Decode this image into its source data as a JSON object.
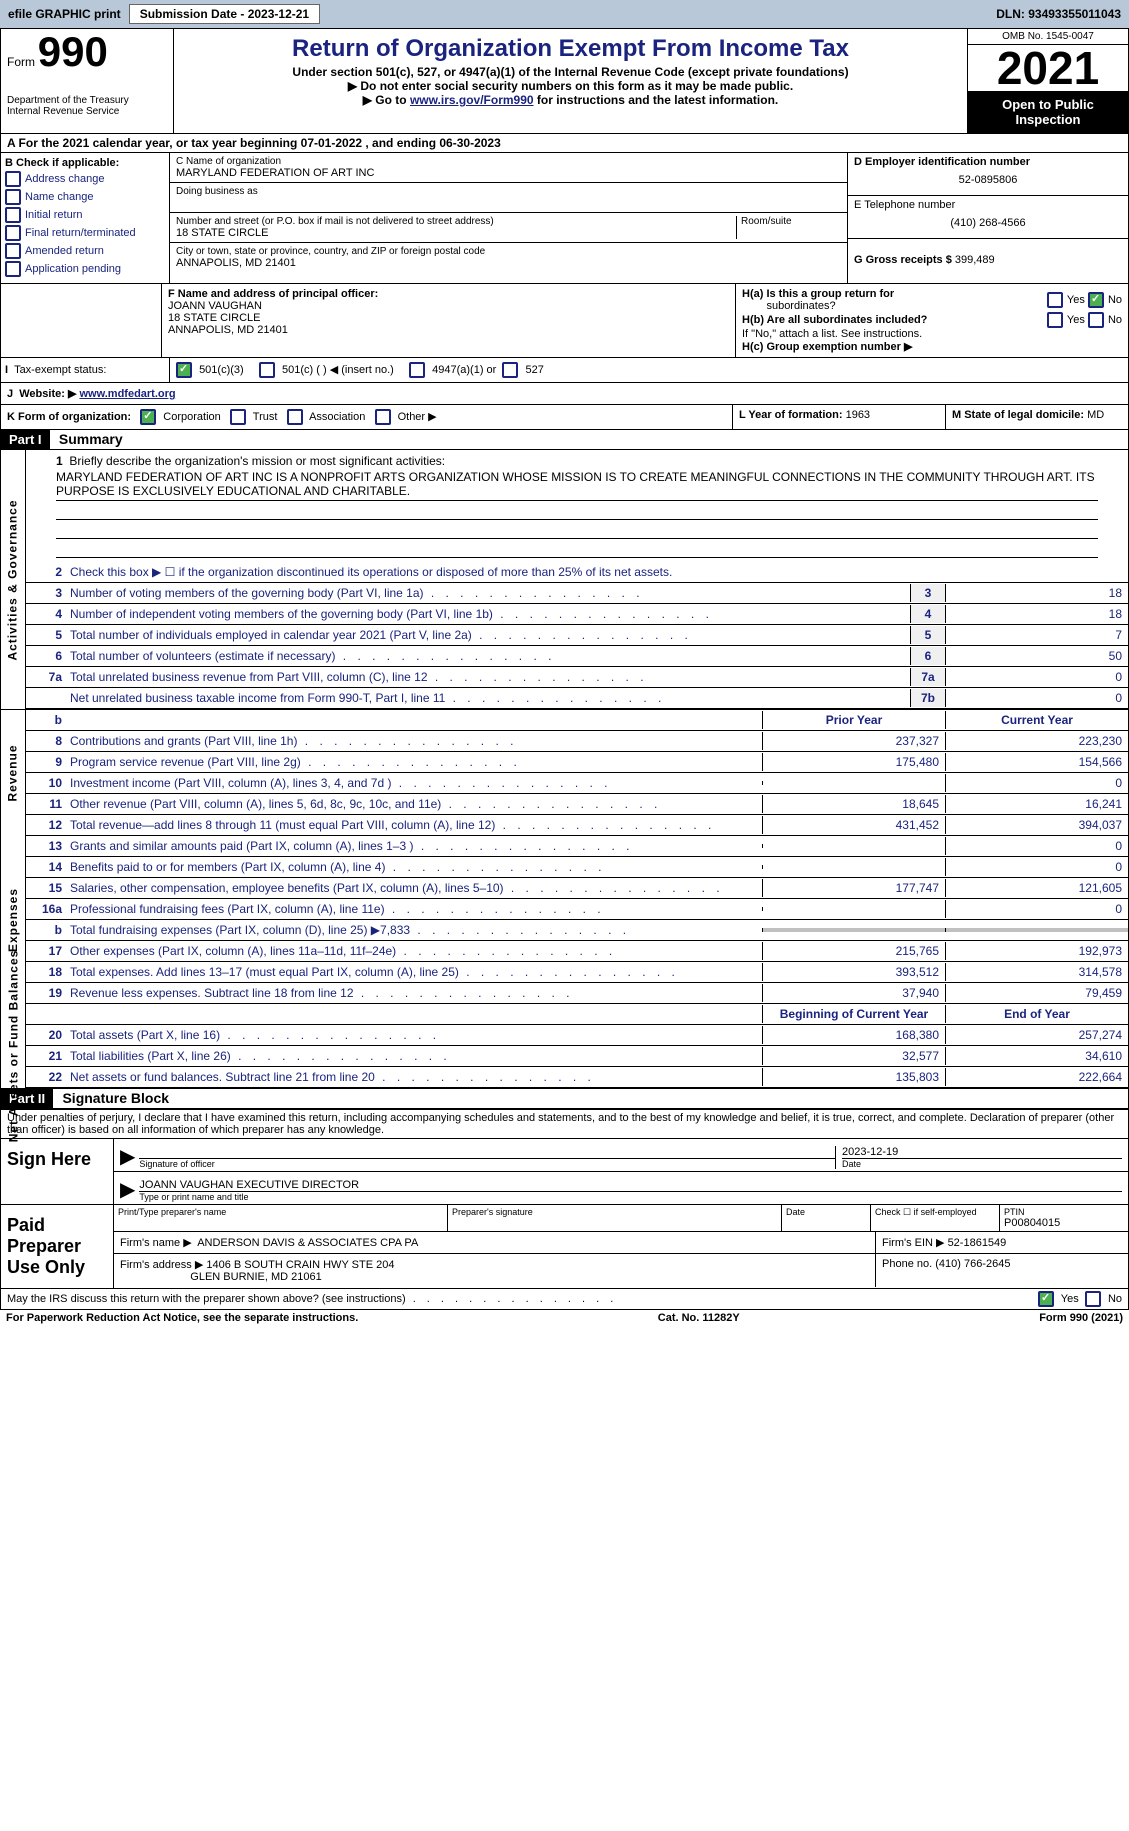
{
  "topbar": {
    "efile_label": "efile GRAPHIC print",
    "submission_label": "Submission Date - 2023-12-21",
    "dln_label": "DLN: 93493355011043"
  },
  "header": {
    "form_prefix": "Form",
    "form_number": "990",
    "dept": "Department of the Treasury",
    "irs": "Internal Revenue Service",
    "title": "Return of Organization Exempt From Income Tax",
    "subtitle": "Under section 501(c), 527, or 4947(a)(1) of the Internal Revenue Code (except private foundations)",
    "note1": "▶ Do not enter social security numbers on this form as it may be made public.",
    "note2_prefix": "▶ Go to ",
    "note2_link": "www.irs.gov/Form990",
    "note2_suffix": " for instructions and the latest information.",
    "omb": "OMB No. 1545-0047",
    "year": "2021",
    "open_label": "Open to Public Inspection"
  },
  "row_a": "A For the 2021 calendar year, or tax year beginning 07-01-2022    , and ending 06-30-2023",
  "section_b": {
    "b_label": "B Check if applicable:",
    "checks": [
      "Address change",
      "Name change",
      "Initial return",
      "Final return/terminated",
      "Amended return",
      "Application pending"
    ],
    "c_name_label": "C Name of organization",
    "org_name": "MARYLAND FEDERATION OF ART INC",
    "dba_label": "Doing business as",
    "street_label": "Number and street (or P.O. box if mail is not delivered to street address)",
    "room_label": "Room/suite",
    "street": "18 STATE CIRCLE",
    "city_label": "City or town, state or province, country, and ZIP or foreign postal code",
    "city": "ANNAPOLIS, MD  21401",
    "d_label": "D Employer identification number",
    "ein": "52-0895806",
    "e_label": "E Telephone number",
    "phone": "(410) 268-4566",
    "g_label": "G Gross receipts $",
    "gross": "399,489"
  },
  "row_f": {
    "f_label": "F Name and address of principal officer:",
    "officer_name": "JOANN VAUGHAN",
    "officer_addr1": "18 STATE CIRCLE",
    "officer_addr2": "ANNAPOLIS, MD  21401",
    "ha_label": "H(a)  Is this a group return for",
    "ha_sub": "subordinates?",
    "hb_label": "H(b)  Are all subordinates included?",
    "hb_note": "If \"No,\" attach a list. See instructions.",
    "hc_label": "H(c)  Group exemption number ▶",
    "yes": "Yes",
    "no": "No"
  },
  "row_i": {
    "label": "I",
    "text": "Tax-exempt status:",
    "opt1": "501(c)(3)",
    "opt2": "501(c) (  ) ◀ (insert no.)",
    "opt3": "4947(a)(1) or",
    "opt4": "527"
  },
  "row_j": {
    "label": "J",
    "text": "Website: ▶ ",
    "url": "www.mdfedart.org"
  },
  "row_k": {
    "k_label": "K Form of organization:",
    "corp": "Corporation",
    "trust": "Trust",
    "assoc": "Association",
    "other": "Other ▶",
    "l_label": "L Year of formation:",
    "l_val": "1963",
    "m_label": "M State of legal domicile:",
    "m_val": "MD"
  },
  "part1": {
    "header": "Part I",
    "title": "Summary"
  },
  "mission": {
    "num": "1",
    "label": "Briefly describe the organization's mission or most significant activities:",
    "text": "MARYLAND FEDERATION OF ART INC IS A NONPROFIT ARTS ORGANIZATION WHOSE MISSION IS TO CREATE MEANINGFUL CONNECTIONS IN THE COMMUNITY THROUGH ART. ITS PURPOSE IS EXCLUSIVELY EDUCATIONAL AND CHARITABLE."
  },
  "summary": {
    "line2": "Check this box ▶ ☐ if the organization discontinued its operations or disposed of more than 25% of its net assets.",
    "prior_header": "Prior Year",
    "current_header": "Current Year",
    "begin_header": "Beginning of Current Year",
    "end_header": "End of Year",
    "activities_tab": "Activities & Governance",
    "revenue_tab": "Revenue",
    "expenses_tab": "Expenses",
    "netassets_tab": "Net Assets or Fund Balances",
    "lines_single": [
      {
        "num": "3",
        "desc": "Number of voting members of the governing body (Part VI, line 1a)",
        "box": "3",
        "val": "18"
      },
      {
        "num": "4",
        "desc": "Number of independent voting members of the governing body (Part VI, line 1b)",
        "box": "4",
        "val": "18"
      },
      {
        "num": "5",
        "desc": "Total number of individuals employed in calendar year 2021 (Part V, line 2a)",
        "box": "5",
        "val": "7"
      },
      {
        "num": "6",
        "desc": "Total number of volunteers (estimate if necessary)",
        "box": "6",
        "val": "50"
      },
      {
        "num": "7a",
        "desc": "Total unrelated business revenue from Part VIII, column (C), line 12",
        "box": "7a",
        "val": "0"
      },
      {
        "num": "",
        "desc": "Net unrelated business taxable income from Form 990-T, Part I, line 11",
        "box": "7b",
        "val": "0"
      }
    ],
    "lines_revenue": [
      {
        "num": "8",
        "desc": "Contributions and grants (Part VIII, line 1h)",
        "prior": "237,327",
        "current": "223,230"
      },
      {
        "num": "9",
        "desc": "Program service revenue (Part VIII, line 2g)",
        "prior": "175,480",
        "current": "154,566"
      },
      {
        "num": "10",
        "desc": "Investment income (Part VIII, column (A), lines 3, 4, and 7d )",
        "prior": "",
        "current": "0"
      },
      {
        "num": "11",
        "desc": "Other revenue (Part VIII, column (A), lines 5, 6d, 8c, 9c, 10c, and 11e)",
        "prior": "18,645",
        "current": "16,241"
      },
      {
        "num": "12",
        "desc": "Total revenue—add lines 8 through 11 (must equal Part VIII, column (A), line 12)",
        "prior": "431,452",
        "current": "394,037"
      }
    ],
    "lines_expenses": [
      {
        "num": "13",
        "desc": "Grants and similar amounts paid (Part IX, column (A), lines 1–3 )",
        "prior": "",
        "current": "0"
      },
      {
        "num": "14",
        "desc": "Benefits paid to or for members (Part IX, column (A), line 4)",
        "prior": "",
        "current": "0"
      },
      {
        "num": "15",
        "desc": "Salaries, other compensation, employee benefits (Part IX, column (A), lines 5–10)",
        "prior": "177,747",
        "current": "121,605"
      },
      {
        "num": "16a",
        "desc": "Professional fundraising fees (Part IX, column (A), line 11e)",
        "prior": "",
        "current": "0"
      },
      {
        "num": "b",
        "desc": "Total fundraising expenses (Part IX, column (D), line 25) ▶7,833",
        "prior": "shaded",
        "current": "shaded"
      },
      {
        "num": "17",
        "desc": "Other expenses (Part IX, column (A), lines 11a–11d, 11f–24e)",
        "prior": "215,765",
        "current": "192,973"
      },
      {
        "num": "18",
        "desc": "Total expenses. Add lines 13–17 (must equal Part IX, column (A), line 25)",
        "prior": "393,512",
        "current": "314,578"
      },
      {
        "num": "19",
        "desc": "Revenue less expenses. Subtract line 18 from line 12",
        "prior": "37,940",
        "current": "79,459"
      }
    ],
    "lines_netassets": [
      {
        "num": "20",
        "desc": "Total assets (Part X, line 16)",
        "prior": "168,380",
        "current": "257,274"
      },
      {
        "num": "21",
        "desc": "Total liabilities (Part X, line 26)",
        "prior": "32,577",
        "current": "34,610"
      },
      {
        "num": "22",
        "desc": "Net assets or fund balances. Subtract line 21 from line 20",
        "prior": "135,803",
        "current": "222,664"
      }
    ]
  },
  "part2": {
    "header": "Part II",
    "title": "Signature Block",
    "declaration": "Under penalties of perjury, I declare that I have examined this return, including accompanying schedules and statements, and to the best of my knowledge and belief, it is true, correct, and complete. Declaration of preparer (other than officer) is based on all information of which preparer has any knowledge."
  },
  "signature": {
    "sign_here": "Sign Here",
    "sig_officer_label": "Signature of officer",
    "date_label": "Date",
    "date_val": "2023-12-19",
    "officer_typed": "JOANN VAUGHAN  EXECUTIVE DIRECTOR",
    "type_label": "Type or print name and title",
    "paid_label": "Paid Preparer Use Only",
    "print_name_label": "Print/Type preparer's name",
    "prep_sig_label": "Preparer's signature",
    "prep_date_label": "Date",
    "check_self_label": "Check ☐ if self-employed",
    "ptin_label": "PTIN",
    "ptin": "P00804015",
    "firm_name_label": "Firm's name     ▶",
    "firm_name": "ANDERSON DAVIS & ASSOCIATES CPA PA",
    "firm_ein_label": "Firm's EIN ▶",
    "firm_ein": "52-1861549",
    "firm_addr_label": "Firm's address ▶",
    "firm_addr1": "1406 B SOUTH CRAIN HWY STE 204",
    "firm_addr2": "GLEN BURNIE, MD  21061",
    "firm_phone_label": "Phone no.",
    "firm_phone": "(410) 766-2645",
    "may_discuss": "May the IRS discuss this return with the preparer shown above? (see instructions)",
    "yes": "Yes",
    "no": "No"
  },
  "footer": {
    "left": "For Paperwork Reduction Act Notice, see the separate instructions.",
    "mid": "Cat. No. 11282Y",
    "right": "Form 990 (2021)"
  }
}
